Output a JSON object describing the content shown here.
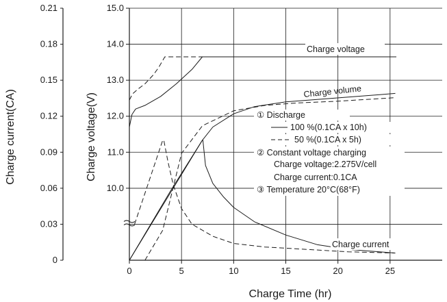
{
  "chart_data": {
    "type": "line",
    "xlabel": "Charge Time (hr)",
    "ylabel_left": "Charge current(CA)",
    "ylabel_right": "Charge voltage(V)",
    "x_ticks": [
      "0",
      "5",
      "10",
      "15",
      "20",
      "25"
    ],
    "voltage_ticks": [
      "15.0",
      "14.0",
      "13.0",
      "12.0",
      "11.0",
      "10.0"
    ],
    "current_ticks": [
      "0.21",
      "0.18",
      "0.15",
      "0.12",
      "0.09",
      "0.06",
      "0.03",
      "0"
    ],
    "xlim": [
      0,
      30
    ],
    "voltage_ylim": [
      8.0,
      15.0
    ],
    "current_ylim": [
      0,
      0.21
    ],
    "grid": true,
    "annotations": {
      "charge_voltage": "Charge voltage",
      "charge_volume": "Charge volume",
      "charge_current": "Charge current"
    },
    "legend": {
      "discharge_title": "① Discharge",
      "solid_label": "100 %(0.1CA x 10h)",
      "dashed_label": "50 %(0.1CA x 5h)",
      "cv_title": "② Constant voltage charging",
      "cv_voltage": "Charge voltage:2.275V/cell",
      "cv_current": "Charge current:0.1CA",
      "temperature": "③ Temperature 20°C(68°F)"
    },
    "series": [
      {
        "name": "100 %(0.1CA x 10h)",
        "quantity": "voltage",
        "style": "solid",
        "x": [
          0,
          0.25,
          0.6,
          1.5,
          3,
          4.5,
          6,
          7
        ],
        "y": [
          11.7,
          12.05,
          12.2,
          12.3,
          12.55,
          12.9,
          13.3,
          13.65
        ]
      },
      {
        "name": "100 %(0.1CA x 10h)",
        "quantity": "voltage",
        "style": "solid",
        "x": [
          7,
          25.6
        ],
        "y": [
          13.65,
          13.65
        ]
      },
      {
        "name": "50 %(0.1CA x 5h)",
        "quantity": "voltage",
        "style": "dashed",
        "x": [
          0,
          0.3,
          0.8,
          1.5,
          2.3,
          2.8,
          3.4,
          25.6
        ],
        "y": [
          12.45,
          12.62,
          12.75,
          12.9,
          13.15,
          13.35,
          13.65,
          13.65
        ]
      },
      {
        "name": "100 %(0.1CA x 10h)",
        "quantity": "current",
        "style": "solid",
        "x": [
          0,
          7,
          7.05,
          7.3,
          8,
          9,
          10,
          12,
          15,
          18,
          21,
          24,
          25.5
        ],
        "y": [
          0,
          0.1,
          0.1,
          0.079,
          0.064,
          0.053,
          0.044,
          0.032,
          0.021,
          0.013,
          0.009,
          0.007,
          0.006
        ]
      },
      {
        "name": "50 %(0.1CA x 5h)",
        "quantity": "current",
        "style": "dashed",
        "x": [
          0.5,
          3.2,
          3.3,
          3.7,
          4.2,
          5,
          6,
          8,
          10,
          13,
          17,
          21,
          25.5
        ],
        "y": [
          0.03,
          0.1,
          0.1,
          0.082,
          0.063,
          0.043,
          0.03,
          0.02,
          0.014,
          0.011,
          0.009,
          0.007,
          0.006
        ]
      },
      {
        "name": "Charge volume",
        "quantity": "volume",
        "style": "solid",
        "x": [
          0,
          4,
          7,
          8,
          10,
          12,
          15,
          18,
          21,
          24,
          25.5
        ],
        "y": [
          0,
          58.5,
          100,
          111,
          122,
          128,
          132,
          134,
          136,
          138,
          139
        ]
      },
      {
        "name": "Charge volume",
        "quantity": "volume",
        "style": "dashed",
        "x": [
          1.5,
          3.2,
          5,
          7,
          10,
          13,
          16,
          20,
          25.5
        ],
        "y": [
          0,
          25,
          89,
          112,
          124.5,
          129,
          131,
          132.5,
          135.5
        ]
      }
    ]
  }
}
